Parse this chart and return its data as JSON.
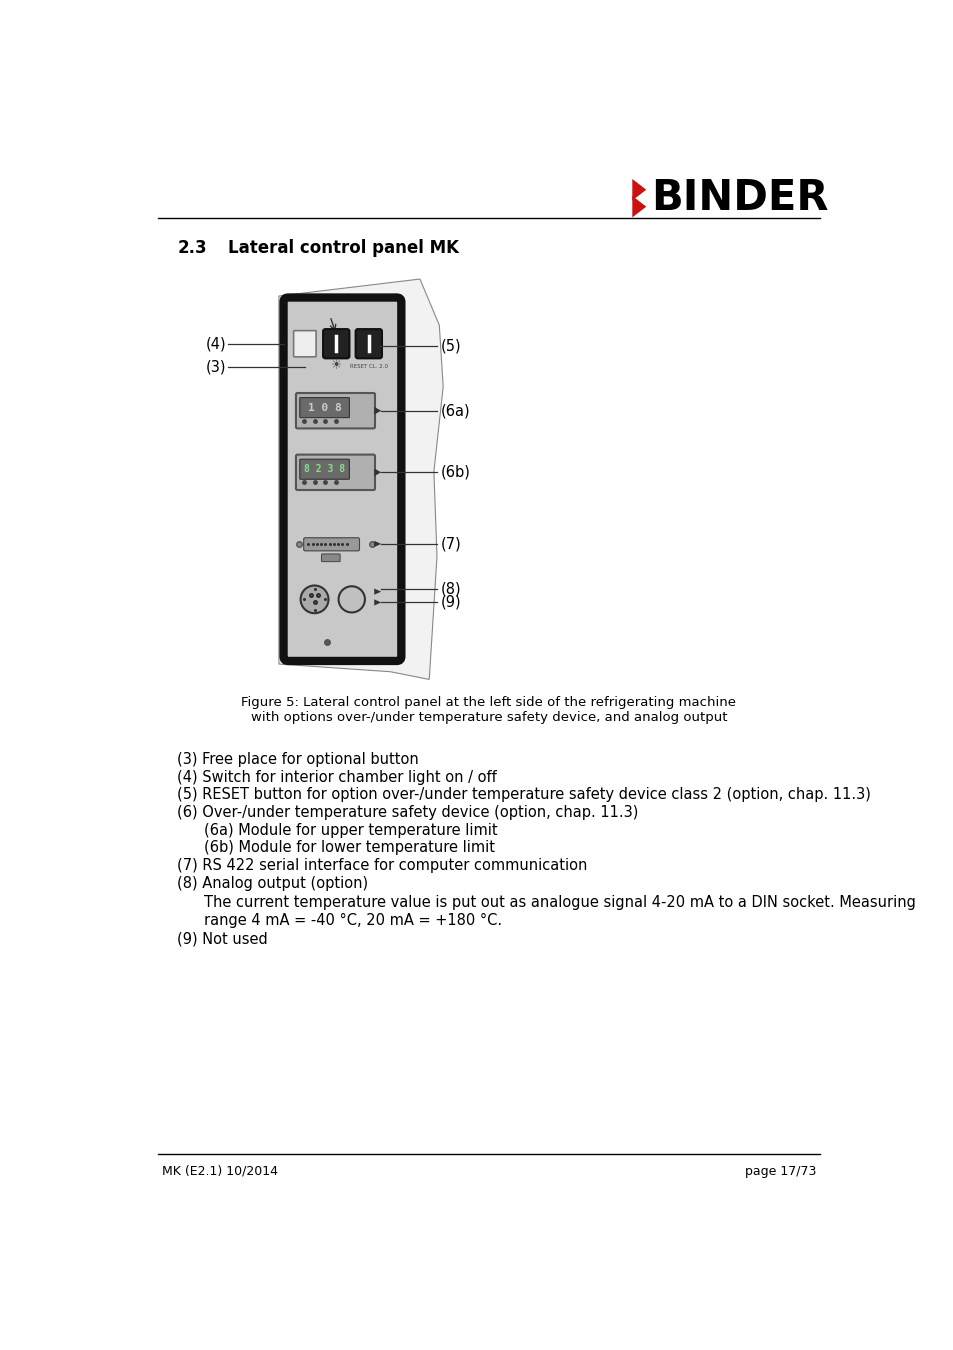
{
  "title_num": "2.3",
  "title_text": "Lateral control panel MK",
  "footer_left": "MK (E2.1) 10/2014",
  "footer_right": "page 17/73",
  "figure_caption_line1": "Figure 5: Lateral control panel at the left side of the refrigerating machine",
  "figure_caption_line2": "with options over-/under temperature safety device, and analog output",
  "desc_lines": [
    {
      "text": "(3) Free place for optional button",
      "indent": 0
    },
    {
      "text": "(4) Switch for interior chamber light on / off",
      "indent": 0
    },
    {
      "text": "(5) RESET button for option over-/under temperature safety device class 2 (option, chap. 11.3)",
      "indent": 0
    },
    {
      "text": "(6) Over-/under temperature safety device (option, chap. 11.3)",
      "indent": 0
    },
    {
      "text": "(6a) Module for upper temperature limit",
      "indent": 1
    },
    {
      "text": "(6b) Module for lower temperature limit",
      "indent": 1
    },
    {
      "text": "(7) RS 422 serial interface for computer communication",
      "indent": 0
    },
    {
      "text": "(8) Analog output (option)",
      "indent": 0
    }
  ],
  "analog_line1": "The current temperature value is put out as analogue signal 4-20 mA to a DIN socket. Measuring",
  "analog_line2": "range 4 mA = -40 °C, 20 mA = +180 °C.",
  "not_used": "(9) Not used",
  "bg_color": "#ffffff",
  "panel_gray": "#c8c8c8",
  "panel_dark_gray": "#888888",
  "panel_border": "#111111",
  "text_color": "#000000",
  "binder_red": "#cc1111",
  "line_color": "#333333"
}
